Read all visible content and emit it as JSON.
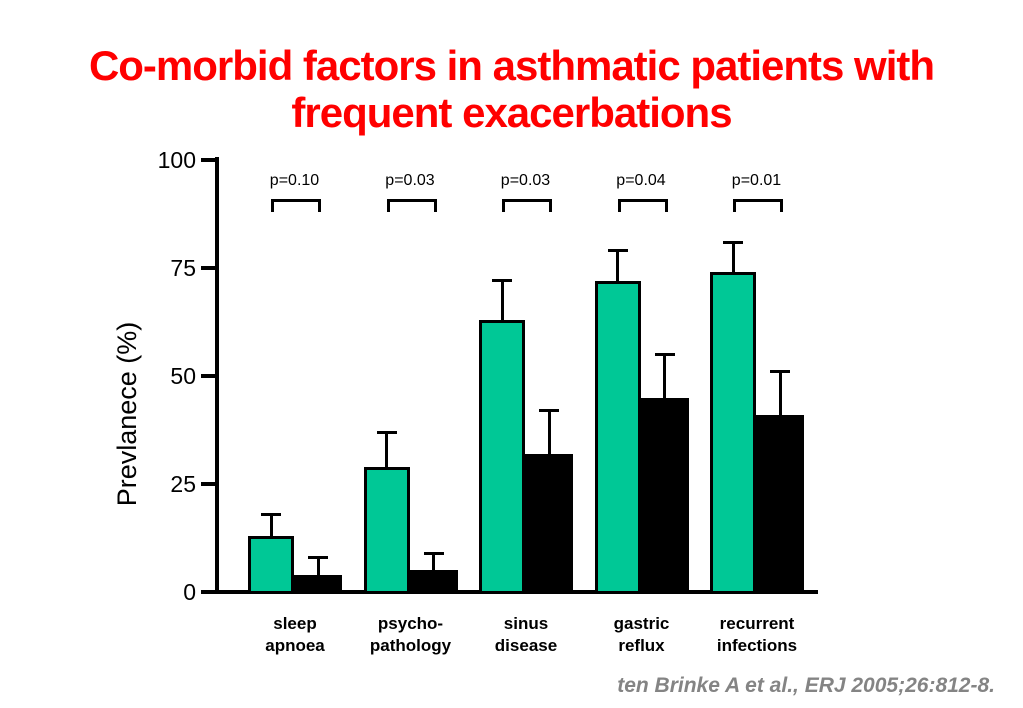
{
  "slide": {
    "title_lines": [
      "Co-morbid factors in asthmatic patients with",
      "frequent exacerbations"
    ],
    "title_color": "#FF0000",
    "citation": "ten Brinke A et al., ERJ 2005;26:812-8.",
    "citation_color": "#848484"
  },
  "chart_data": {
    "type": "bar",
    "title": "",
    "xlabel": "",
    "ylabel": "Prevlanece (%)",
    "ylim": [
      0,
      100
    ],
    "yticks": [
      0,
      25,
      50,
      75,
      100
    ],
    "grid": false,
    "legend": "none",
    "categories": [
      "sleep apnoea",
      "psycho-pathology",
      "sinus disease",
      "gastric reflux",
      "recurrent infections"
    ],
    "category_lines": [
      [
        "sleep",
        "apnoea"
      ],
      [
        "psycho-",
        "pathology"
      ],
      [
        "sinus",
        "disease"
      ],
      [
        "gastric",
        "reflux"
      ],
      [
        "recurrent",
        "infections"
      ]
    ],
    "p_values": [
      "p=0.10",
      "p=0.03",
      "p=0.03",
      "p=0.04",
      "p=0.01"
    ],
    "series": [
      {
        "name": "green",
        "color": "#00C896",
        "values": [
          13,
          29,
          63,
          72,
          74
        ],
        "errors": [
          5,
          8,
          9,
          7,
          7
        ]
      },
      {
        "name": "black",
        "color": "#000000",
        "values": [
          4,
          5,
          32,
          45,
          41
        ],
        "errors": [
          4,
          4,
          10,
          10,
          10
        ]
      }
    ]
  }
}
